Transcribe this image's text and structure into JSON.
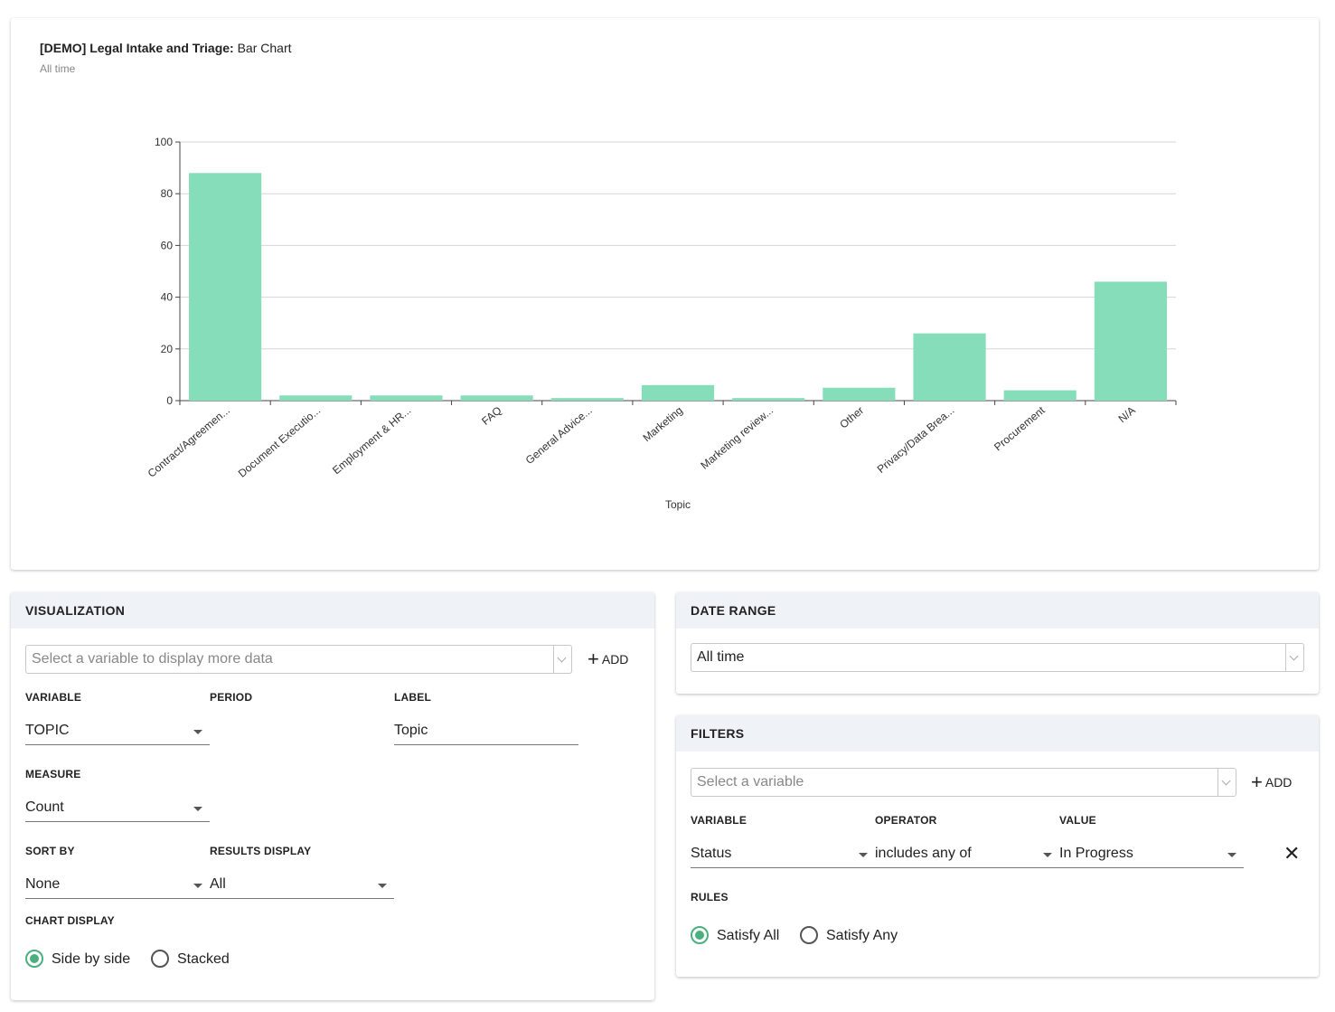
{
  "chart_card": {
    "title_bold": "[DEMO] Legal Intake and Triage:",
    "title_rest": "Bar Chart",
    "subtitle": "All time"
  },
  "chart_data": {
    "type": "bar",
    "categories": [
      "Contract/Agreemen...",
      "Document Executio...",
      "Employment & HR...",
      "FAQ",
      "General Advice...",
      "Marketing",
      "Marketing review...",
      "Other",
      "Privacy/Data Brea...",
      "Procurement",
      "N/A"
    ],
    "values": [
      88,
      2,
      2,
      2,
      1,
      6,
      1,
      5,
      26,
      4,
      46
    ],
    "xlabel": "Topic",
    "ylabel": "",
    "ylim": [
      0,
      100
    ],
    "yticks": [
      0,
      20,
      40,
      60,
      80,
      100
    ],
    "grid": true,
    "bar_color": "#86ddb9"
  },
  "visualization": {
    "header": "VISUALIZATION",
    "variable_select_placeholder": "Select a variable to display more data",
    "add_label": "ADD",
    "variable_label": "VARIABLE",
    "variable_value": "TOPIC",
    "period_label": "PERIOD",
    "label_label": "LABEL",
    "label_value": "Topic",
    "measure_label": "MEASURE",
    "measure_value": "Count",
    "sort_by_label": "SORT BY",
    "sort_by_value": "None",
    "results_display_label": "RESULTS DISPLAY",
    "results_display_value": "All",
    "chart_display_label": "CHART DISPLAY",
    "chart_display_options": [
      "Side by side",
      "Stacked"
    ],
    "chart_display_selected": "Side by side"
  },
  "date_range": {
    "header": "DATE RANGE",
    "value": "All time"
  },
  "filters": {
    "header": "FILTERS",
    "variable_select_placeholder": "Select a variable",
    "add_label": "ADD",
    "variable_label": "VARIABLE",
    "operator_label": "OPERATOR",
    "value_label": "VALUE",
    "row": {
      "variable": "Status",
      "operator": "includes any of",
      "value": "In Progress"
    },
    "rules_label": "RULES",
    "rules_options": [
      "Satisfy All",
      "Satisfy Any"
    ],
    "rules_selected": "Satisfy All"
  },
  "colors": {
    "accent": "#4caf7f",
    "header_bg": "#eff2f7"
  }
}
